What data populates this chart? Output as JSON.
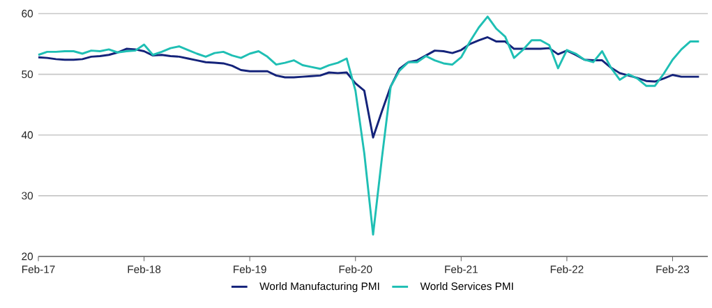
{
  "chart_data": {
    "type": "line",
    "x": [
      "2017-02",
      "2017-03",
      "2017-04",
      "2017-05",
      "2017-06",
      "2017-07",
      "2017-08",
      "2017-09",
      "2017-10",
      "2017-11",
      "2017-12",
      "2018-01",
      "2018-02",
      "2018-03",
      "2018-04",
      "2018-05",
      "2018-06",
      "2018-07",
      "2018-08",
      "2018-09",
      "2018-10",
      "2018-11",
      "2018-12",
      "2019-01",
      "2019-02",
      "2019-03",
      "2019-04",
      "2019-05",
      "2019-06",
      "2019-07",
      "2019-08",
      "2019-09",
      "2019-10",
      "2019-11",
      "2019-12",
      "2020-01",
      "2020-02",
      "2020-03",
      "2020-04",
      "2020-05",
      "2020-06",
      "2020-07",
      "2020-08",
      "2020-09",
      "2020-10",
      "2020-11",
      "2020-12",
      "2021-01",
      "2021-02",
      "2021-03",
      "2021-04",
      "2021-05",
      "2021-06",
      "2021-07",
      "2021-08",
      "2021-09",
      "2021-10",
      "2021-11",
      "2021-12",
      "2022-01",
      "2022-02",
      "2022-03",
      "2022-04",
      "2022-05",
      "2022-06",
      "2022-07",
      "2022-08",
      "2022-09",
      "2022-10",
      "2022-11",
      "2022-12",
      "2023-01",
      "2023-02",
      "2023-03",
      "2023-04",
      "2023-05"
    ],
    "series": [
      {
        "name": "World Manufacturing PMI",
        "color": "#14237a",
        "values": [
          52.8,
          52.7,
          52.5,
          52.4,
          52.4,
          52.5,
          52.9,
          53.0,
          53.2,
          53.6,
          54.2,
          54.1,
          53.8,
          53.1,
          53.2,
          53.0,
          52.9,
          52.6,
          52.3,
          52.0,
          51.9,
          51.8,
          51.4,
          50.7,
          50.5,
          50.5,
          50.5,
          49.8,
          49.5,
          49.5,
          49.6,
          49.7,
          49.8,
          50.3,
          50.2,
          50.3,
          48.5,
          47.3,
          39.6,
          43.9,
          48.0,
          50.9,
          52.0,
          52.3,
          53.1,
          53.9,
          53.8,
          53.5,
          54.0,
          55.0,
          55.6,
          56.1,
          55.4,
          55.4,
          54.2,
          54.2,
          54.2,
          54.2,
          54.3,
          53.3,
          53.9,
          53.2,
          52.4,
          52.3,
          52.3,
          51.1,
          50.2,
          49.8,
          49.4,
          48.9,
          48.8,
          49.3,
          49.9,
          49.6,
          49.6,
          49.6
        ]
      },
      {
        "name": "World Services PMI",
        "color": "#1fbfb4",
        "values": [
          53.2,
          53.7,
          53.7,
          53.8,
          53.8,
          53.4,
          53.9,
          53.8,
          54.1,
          53.6,
          53.8,
          53.9,
          54.9,
          53.2,
          53.7,
          54.3,
          54.6,
          54.0,
          53.4,
          52.9,
          53.5,
          53.7,
          53.1,
          52.7,
          53.4,
          53.8,
          52.9,
          51.6,
          51.9,
          52.3,
          51.5,
          51.2,
          50.9,
          51.5,
          51.9,
          52.6,
          47.3,
          37.0,
          23.6,
          36.2,
          48.0,
          50.6,
          52.0,
          52.0,
          53.0,
          52.3,
          51.8,
          51.6,
          52.8,
          55.4,
          57.7,
          59.5,
          57.5,
          56.2,
          52.7,
          54.0,
          55.6,
          55.6,
          54.8,
          51.0,
          54.0,
          53.4,
          52.4,
          52.0,
          53.8,
          51.1,
          49.1,
          50.0,
          49.3,
          48.1,
          48.1,
          50.1,
          52.4,
          54.1,
          55.4,
          55.4
        ]
      }
    ],
    "xlim": [
      "2017-02",
      "2023-06"
    ],
    "xticks": [
      {
        "value": "2017-02",
        "label": "Feb-17"
      },
      {
        "value": "2018-02",
        "label": "Feb-18"
      },
      {
        "value": "2019-02",
        "label": "Feb-19"
      },
      {
        "value": "2020-02",
        "label": "Feb-20"
      },
      {
        "value": "2021-02",
        "label": "Feb-21"
      },
      {
        "value": "2022-02",
        "label": "Feb-22"
      },
      {
        "value": "2023-02",
        "label": "Feb-23"
      }
    ],
    "ylim": [
      20,
      60
    ],
    "yticks": [
      20,
      30,
      40,
      50,
      60
    ],
    "grid": "y",
    "legend": "bottom"
  }
}
